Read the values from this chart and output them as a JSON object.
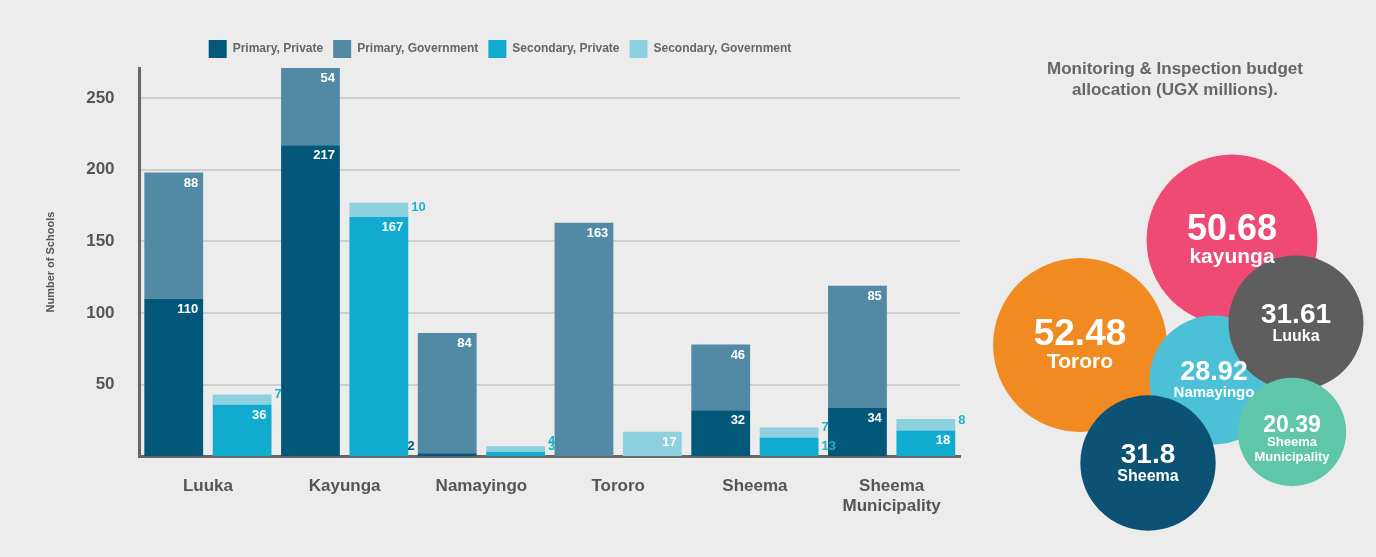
{
  "chart_data": [
    {
      "type": "bar",
      "stacked": true,
      "ylabel": "Number of Schools",
      "categories": [
        "Luuka",
        null,
        "Kayunga",
        null,
        "Namayingo",
        null,
        "Tororo",
        null,
        "Sheema",
        null,
        "Sheema Municipality",
        null
      ],
      "series": [
        {
          "name": "Primary, Private",
          "color": "#03587a",
          "values": [
            110,
            null,
            217,
            null,
            2,
            null,
            null,
            null,
            32,
            null,
            34,
            null
          ]
        },
        {
          "name": "Primary, Government",
          "color": "#528aa6",
          "values": [
            88,
            null,
            54,
            null,
            84,
            null,
            163,
            null,
            46,
            null,
            85,
            null
          ]
        },
        {
          "name": "Secondary, Private",
          "color": "#10abcf",
          "values": [
            null,
            36,
            null,
            167,
            null,
            3,
            null,
            null,
            null,
            13,
            null,
            18
          ]
        },
        {
          "name": "Secondary, Government",
          "color": "#8dd0e0",
          "values": [
            null,
            7,
            null,
            10,
            null,
            4,
            null,
            17,
            null,
            7,
            null,
            8
          ]
        }
      ],
      "ylim": [
        0,
        271
      ],
      "yticks": [
        50,
        100,
        150,
        200,
        250
      ],
      "grid": "y",
      "legend": "top",
      "data_labels": true
    },
    {
      "type": "other",
      "title": "Monitoring & Inspection budget allocation (UGX millions).",
      "categories": [
        "kayunga",
        "Tororo",
        "Namayingo",
        "Luuka",
        "Sheema",
        "Sheema Municipality"
      ],
      "values": [
        50.68,
        52.48,
        28.92,
        31.61,
        31.8,
        20.39
      ],
      "colors": [
        "#ee4a74",
        "#f28a22",
        "#4cc0d6",
        "#5e5e5e",
        "#0b5275",
        "#5fc6aa"
      ],
      "data_labels": true
    }
  ]
}
